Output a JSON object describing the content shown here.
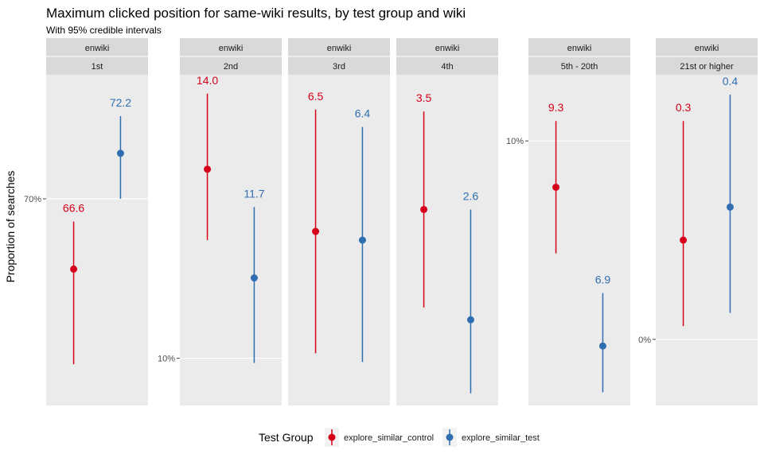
{
  "chart_data": {
    "type": "scatter",
    "title": "Maximum clicked position for same-wiki results, by test group and wiki",
    "subtitle": "With 95% credible intervals",
    "ylabel": "Proportion of searches",
    "xlabel": "",
    "grid": true,
    "legend": {
      "title": "Test Group",
      "position": "bottom",
      "entries": [
        "explore_similar_control",
        "explore_similar_test"
      ]
    },
    "colors": {
      "explore_similar_control": "#d7001a",
      "explore_similar_test": "#2f6eb0"
    },
    "panels": [
      {
        "strip_top": "enwiki",
        "strip_bottom": "1st",
        "ylim": [
          0.6,
          0.76
        ],
        "ticks": [
          {
            "value": 0.7,
            "label": "70%"
          }
        ],
        "series": [
          {
            "name": "explore_similar_control",
            "estimate": 0.666,
            "low": 0.62,
            "high": 0.689,
            "label": "66.6"
          },
          {
            "name": "explore_similar_test",
            "estimate": 0.722,
            "low": 0.7,
            "high": 0.74,
            "label": "72.2"
          }
        ]
      },
      {
        "strip_top": "enwiki",
        "strip_bottom": "2nd",
        "ylim": [
          0.09,
          0.16
        ],
        "ticks": [
          {
            "value": 0.1,
            "label": "10%"
          }
        ],
        "series": [
          {
            "name": "explore_similar_control",
            "estimate": 0.14,
            "low": 0.125,
            "high": 0.156,
            "label": "14.0"
          },
          {
            "name": "explore_similar_test",
            "estimate": 0.117,
            "low": 0.099,
            "high": 0.132,
            "label": "11.7"
          }
        ]
      },
      {
        "strip_top": "enwiki",
        "strip_bottom": "3rd",
        "ylim": [
          0.045,
          0.083
        ],
        "ticks": [],
        "series": [
          {
            "name": "explore_similar_control",
            "estimate": 0.065,
            "low": 0.051,
            "high": 0.079,
            "label": "6.5"
          },
          {
            "name": "explore_similar_test",
            "estimate": 0.064,
            "low": 0.05,
            "high": 0.077,
            "label": "6.4"
          }
        ]
      },
      {
        "strip_top": "enwiki",
        "strip_bottom": "4th",
        "ylim": [
          0.019,
          0.046
        ],
        "ticks": [],
        "series": [
          {
            "name": "explore_similar_control",
            "estimate": 0.035,
            "low": 0.027,
            "high": 0.043,
            "label": "3.5"
          },
          {
            "name": "explore_similar_test",
            "estimate": 0.026,
            "low": 0.02,
            "high": 0.035,
            "label": "2.6"
          }
        ]
      },
      {
        "strip_top": "enwiki",
        "strip_bottom": "5th - 20th",
        "ylim": [
          0.06,
          0.11
        ],
        "ticks": [
          {
            "value": 0.1,
            "label": "10%"
          }
        ],
        "series": [
          {
            "name": "explore_similar_control",
            "estimate": 0.093,
            "low": 0.083,
            "high": 0.103,
            "label": "9.3"
          },
          {
            "name": "explore_similar_test",
            "estimate": 0.069,
            "low": 0.062,
            "high": 0.077,
            "label": "6.9"
          }
        ]
      },
      {
        "strip_top": "enwiki",
        "strip_bottom": "21st or higher",
        "ylim": [
          -0.002,
          0.008
        ],
        "ticks": [
          {
            "value": 0.0,
            "label": "0%"
          }
        ],
        "series": [
          {
            "name": "explore_similar_control",
            "estimate": 0.003,
            "low": 0.0004,
            "high": 0.0066,
            "label": "0.3"
          },
          {
            "name": "explore_similar_test",
            "estimate": 0.004,
            "low": 0.0008,
            "high": 0.0074,
            "label": "0.4"
          }
        ]
      }
    ]
  }
}
